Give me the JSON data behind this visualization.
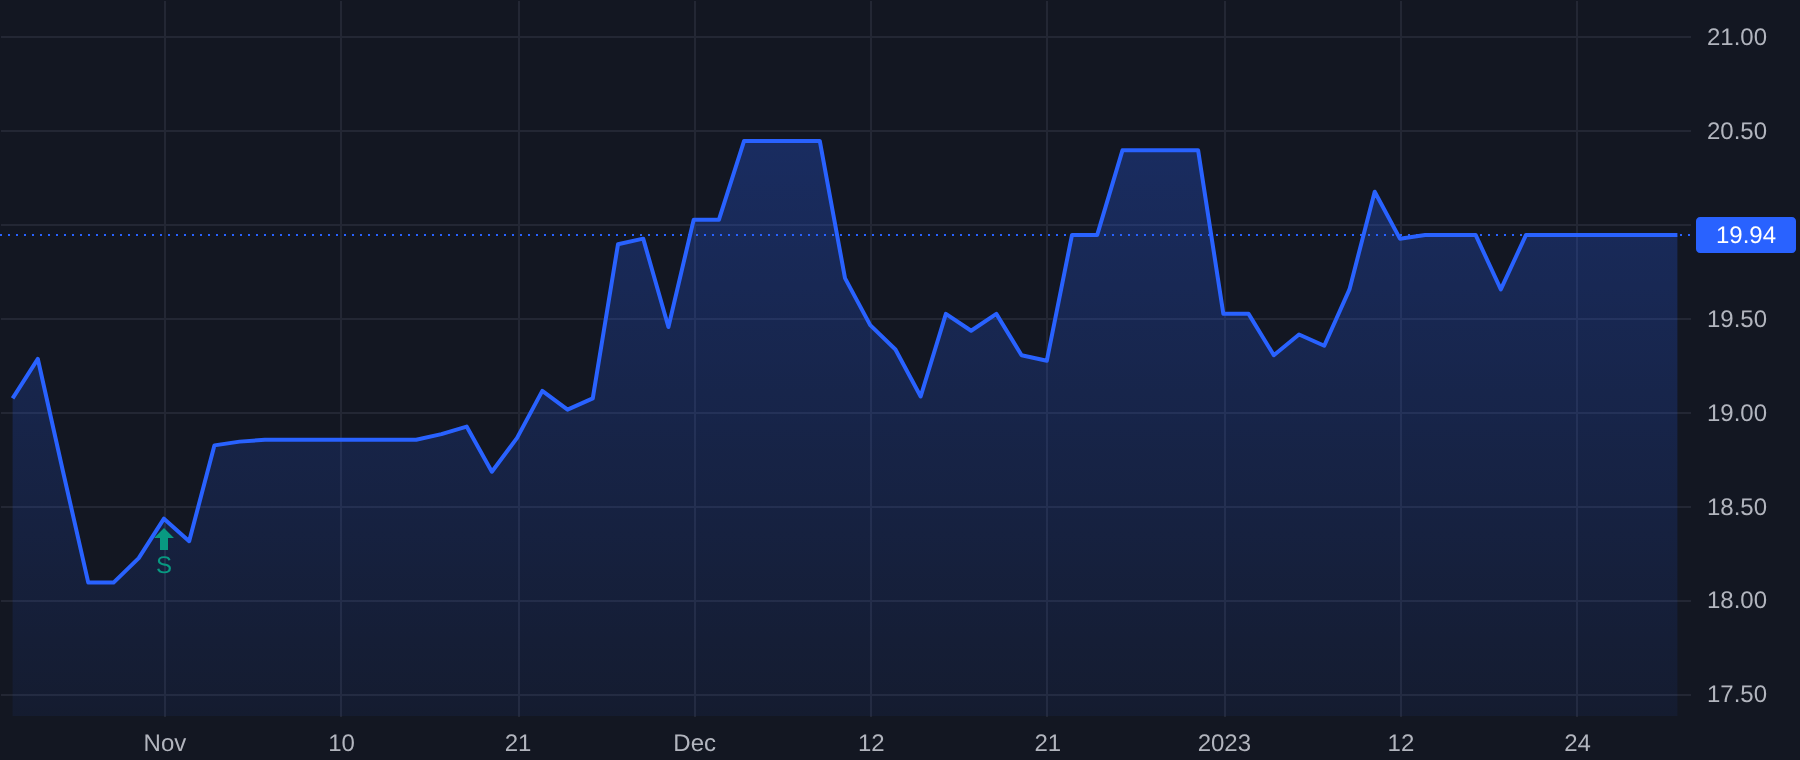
{
  "chart_data": {
    "type": "area",
    "categories": [
      null,
      null,
      null,
      null,
      null,
      null,
      "Nov",
      null,
      null,
      null,
      null,
      null,
      null,
      "10",
      null,
      null,
      null,
      null,
      null,
      null,
      "21",
      null,
      null,
      null,
      null,
      null,
      null,
      "Dec",
      null,
      null,
      null,
      null,
      null,
      null,
      "12",
      null,
      null,
      null,
      null,
      null,
      null,
      "21",
      null,
      null,
      null,
      null,
      null,
      null,
      "2023",
      null,
      null,
      null,
      null,
      null,
      null,
      "12",
      null,
      null,
      null,
      null,
      null,
      null,
      "24",
      null,
      null,
      null,
      null
    ],
    "series": [
      {
        "color": "#2962ff",
        "values": [
          19.07,
          19.28,
          18.68,
          18.09,
          18.09,
          18.22,
          18.43,
          18.31,
          18.82,
          18.84,
          18.85,
          18.85,
          18.85,
          18.85,
          18.85,
          18.85,
          18.85,
          18.88,
          18.92,
          18.68,
          18.86,
          19.11,
          19.01,
          19.07,
          19.89,
          19.92,
          19.45,
          20.02,
          20.02,
          20.44,
          20.44,
          20.44,
          20.44,
          19.71,
          19.46,
          19.33,
          19.08,
          19.52,
          19.43,
          19.52,
          19.3,
          19.27,
          19.94,
          19.94,
          20.39,
          20.39,
          20.39,
          20.39,
          19.52,
          19.52,
          19.3,
          19.41,
          19.35,
          19.65,
          20.17,
          19.92,
          19.94,
          19.94,
          19.94,
          19.65,
          19.94,
          19.94,
          19.94,
          19.94,
          19.94,
          19.94,
          19.94
        ]
      }
    ],
    "ylim": [
      17.38,
      21.19
    ],
    "yticks": [
      {
        "value": 17.5,
        "label": "17.50"
      },
      {
        "value": 18,
        "label": "18.00"
      },
      {
        "value": 18.5,
        "label": "18.50"
      },
      {
        "value": 19,
        "label": "19.00"
      },
      {
        "value": 19.5,
        "label": "19.50"
      },
      {
        "value": 20,
        "label": null
      },
      {
        "value": 20.5,
        "label": "20.50"
      },
      {
        "value": 21,
        "label": "21.00"
      }
    ],
    "grid": true,
    "ref_lines": [
      {
        "axis": "y",
        "value": 19.94,
        "label": "19.94",
        "color": "#2962ff",
        "line_style": "dotted"
      }
    ],
    "annotations": [
      {
        "text": "S",
        "x": "Nov",
        "y": 18.43
      }
    ]
  }
}
